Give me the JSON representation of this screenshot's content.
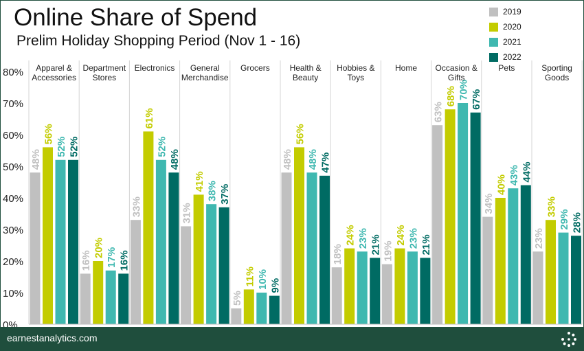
{
  "title": "Online Share of Spend",
  "subtitle": "Prelim Holiday Shopping Period (Nov 1 - 16)",
  "footer": {
    "text": "earnestanalytics.com",
    "logo_icon": "earnest-dots-logo-icon"
  },
  "chart_data": {
    "type": "bar",
    "title": "Online Share of Spend",
    "subtitle": "Prelim Holiday Shopping Period (Nov 1 - 16)",
    "categories": [
      [
        "Apparel &",
        "Accessories"
      ],
      [
        "Department",
        "Stores"
      ],
      [
        "Electronics"
      ],
      [
        "General",
        "Merchandise"
      ],
      [
        "Grocers"
      ],
      [
        "Health &",
        "Beauty"
      ],
      [
        "Hobbies &",
        "Toys"
      ],
      [
        "Home"
      ],
      [
        "Occasion &",
        "Gifts"
      ],
      [
        "Pets"
      ],
      [
        "Sporting",
        "Goods"
      ]
    ],
    "series": [
      {
        "name": "2019",
        "color": "#c0c0c0",
        "values": [
          48,
          16,
          33,
          31,
          5,
          48,
          18,
          19,
          63,
          34,
          23
        ]
      },
      {
        "name": "2020",
        "color": "#c3cc00",
        "values": [
          56,
          20,
          61,
          41,
          11,
          56,
          24,
          24,
          68,
          40,
          33
        ]
      },
      {
        "name": "2021",
        "color": "#3fb8b0",
        "values": [
          52,
          17,
          52,
          38,
          10,
          48,
          23,
          23,
          70,
          43,
          29
        ]
      },
      {
        "name": "2022",
        "color": "#006b63",
        "values": [
          52,
          16,
          48,
          37,
          9,
          47,
          21,
          21,
          67,
          44,
          28
        ]
      }
    ],
    "ylim": [
      0,
      80
    ],
    "yticks": [
      0,
      10,
      20,
      30,
      40,
      50,
      60,
      70,
      80
    ],
    "ytick_labels": [
      "0%",
      "10%",
      "20%",
      "30%",
      "40%",
      "50%",
      "60%",
      "70%",
      "80%"
    ],
    "data_label_suffix": "%",
    "legend_position": "top-right",
    "grid": false
  }
}
